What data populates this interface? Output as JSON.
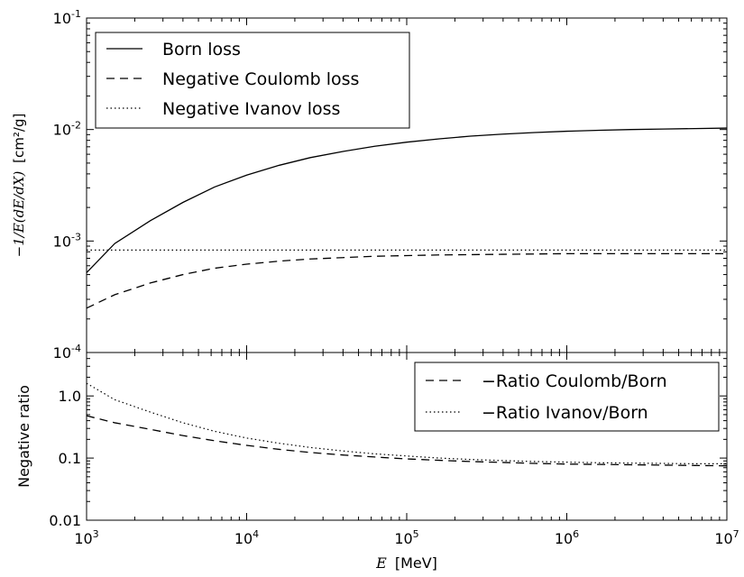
{
  "chart_data": [
    {
      "type": "line",
      "panel": "top",
      "xscale": "log",
      "yscale": "log",
      "xlim": [
        1000,
        10000000
      ],
      "ylim": [
        0.0001,
        0.1
      ],
      "ylabel": "−1/E(dE/dX)",
      "ylabel_unit": "[cm²/g]",
      "y_ticks": [
        {
          "value": 0.0001,
          "mant": "10",
          "exp": "-4"
        },
        {
          "value": 0.001,
          "mant": "10",
          "exp": "-3"
        },
        {
          "value": 0.01,
          "mant": "10",
          "exp": "-2"
        },
        {
          "value": 0.1,
          "mant": "10",
          "exp": "-1"
        }
      ],
      "grid": false,
      "legend": "top-left",
      "series": [
        {
          "name": "Born loss",
          "style": "solid",
          "x": [
            1000,
            1500,
            2500,
            4000,
            6300,
            10000,
            16000,
            25000,
            40000,
            63000,
            100000,
            160000,
            250000,
            400000,
            630000,
            1000000,
            1600000,
            2500000,
            4000000,
            6300000,
            10000000
          ],
          "y": [
            0.00052,
            0.00095,
            0.00152,
            0.00222,
            0.00305,
            0.0039,
            0.00478,
            0.0056,
            0.00636,
            0.00708,
            0.0077,
            0.00825,
            0.00872,
            0.0091,
            0.0094,
            0.00965,
            0.00985,
            0.01,
            0.0101,
            0.0102,
            0.0103
          ]
        },
        {
          "name": "Negative Coulomb loss",
          "style": "dashed",
          "x": [
            1000,
            1500,
            2500,
            4000,
            6300,
            10000,
            16000,
            25000,
            40000,
            63000,
            100000,
            160000,
            250000,
            400000,
            630000,
            1000000,
            1600000,
            2500000,
            4000000,
            6300000,
            10000000
          ],
          "y": [
            0.00025,
            0.00033,
            0.00042,
            0.0005,
            0.00057,
            0.00062,
            0.00066,
            0.00069,
            0.00071,
            0.00073,
            0.00074,
            0.00075,
            0.000755,
            0.00076,
            0.000765,
            0.00077,
            0.00077,
            0.00077,
            0.00077,
            0.00077,
            0.00077
          ]
        },
        {
          "name": "Negative Ivanov loss",
          "style": "dotted",
          "x": [
            1000,
            10000000
          ],
          "y": [
            0.00083,
            0.00083
          ]
        }
      ]
    },
    {
      "type": "line",
      "panel": "bottom",
      "xscale": "log",
      "yscale": "log",
      "xlim": [
        1000,
        10000000
      ],
      "ylim": [
        0.01,
        5
      ],
      "xlabel": "E",
      "xlabel_unit": "[MeV]",
      "ylabel": "Negative ratio",
      "x_ticks": [
        {
          "value": 1000,
          "mant": "10",
          "exp": "3"
        },
        {
          "value": 10000,
          "mant": "10",
          "exp": "4"
        },
        {
          "value": 100000,
          "mant": "10",
          "exp": "5"
        },
        {
          "value": 1000000,
          "mant": "10",
          "exp": "6"
        },
        {
          "value": 10000000,
          "mant": "10",
          "exp": "7"
        }
      ],
      "y_ticks": [
        {
          "value": 0.01,
          "label": "0.01"
        },
        {
          "value": 0.1,
          "label": "0.1"
        },
        {
          "value": 1.0,
          "label": "1.0"
        }
      ],
      "grid": false,
      "legend": "top-right",
      "series": [
        {
          "name": "−Ratio Coulomb/Born",
          "style": "dashed",
          "x": [
            1000,
            1500,
            2500,
            4000,
            6300,
            10000,
            16000,
            25000,
            40000,
            63000,
            100000,
            160000,
            250000,
            400000,
            630000,
            1000000,
            1600000,
            2500000,
            4000000,
            6300000,
            10000000
          ],
          "y": [
            0.48,
            0.37,
            0.29,
            0.23,
            0.19,
            0.16,
            0.138,
            0.123,
            0.112,
            0.104,
            0.097,
            0.092,
            0.088,
            0.085,
            0.082,
            0.08,
            0.079,
            0.078,
            0.077,
            0.076,
            0.075
          ]
        },
        {
          "name": "−Ratio Ivanov/Born",
          "style": "dotted",
          "x": [
            1000,
            1500,
            2500,
            4000,
            6300,
            10000,
            16000,
            25000,
            40000,
            63000,
            100000,
            160000,
            250000,
            400000,
            630000,
            1000000,
            1600000,
            2500000,
            4000000,
            6300000,
            10000000
          ],
          "y": [
            1.6,
            0.87,
            0.55,
            0.37,
            0.27,
            0.21,
            0.173,
            0.148,
            0.13,
            0.117,
            0.108,
            0.1,
            0.095,
            0.091,
            0.088,
            0.086,
            0.084,
            0.083,
            0.082,
            0.081,
            0.081
          ]
        }
      ]
    }
  ]
}
